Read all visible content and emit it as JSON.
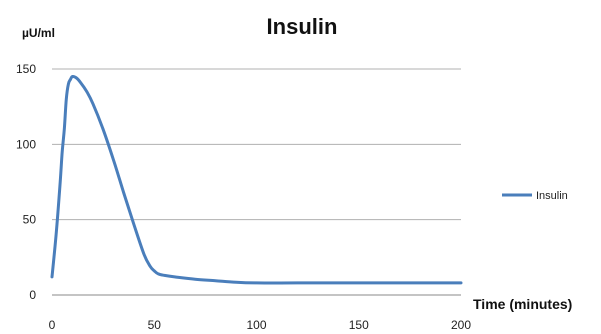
{
  "chart_data": {
    "type": "line",
    "title": "Insulin",
    "ylabel": "µU/ml",
    "xlabel": "Time (minutes)",
    "xlim": [
      0,
      200
    ],
    "ylim": [
      0,
      150
    ],
    "x_ticks": [
      0,
      50,
      100,
      150,
      200
    ],
    "y_ticks": [
      0,
      50,
      100,
      150
    ],
    "grid": "horizontal",
    "legend_position": "right",
    "series": [
      {
        "name": "Insulin",
        "color": "#4a7ebb",
        "x": [
          0,
          2,
          4,
          5,
          6,
          7,
          8,
          9,
          10,
          12,
          14,
          17,
          20,
          25,
          30,
          35,
          40,
          45,
          48,
          50,
          52,
          55,
          60,
          70,
          80,
          90,
          100,
          120,
          150,
          180,
          200
        ],
        "y": [
          12,
          40,
          75,
          95,
          110,
          130,
          140,
          143,
          145,
          144,
          141,
          135,
          127,
          110,
          90,
          68,
          47,
          27,
          19,
          16,
          14,
          13,
          12,
          10.5,
          9.5,
          8.5,
          8,
          8,
          8,
          8,
          8
        ]
      }
    ]
  }
}
